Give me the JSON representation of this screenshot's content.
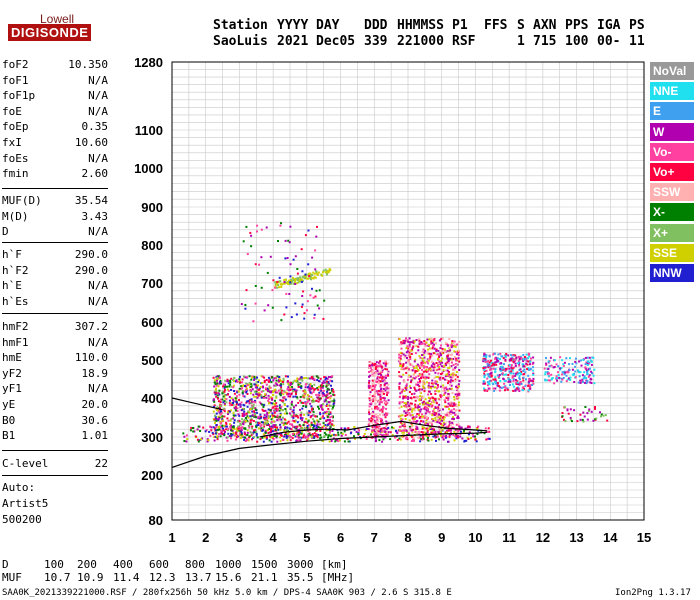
{
  "logo": {
    "line1": "Lowell",
    "line2": "DIGISONDE"
  },
  "header": {
    "labels": [
      "Station",
      "YYYY",
      "DAY",
      "DDD",
      "HHMMSS",
      "P1",
      "FFS",
      "S",
      "AXN",
      "PPS",
      "IGA",
      "PS"
    ],
    "values": [
      "SaoLuis",
      "2021",
      "Dec05",
      "339",
      "221000",
      "RSF",
      "1",
      "715",
      "100",
      "00-",
      "11"
    ]
  },
  "params": {
    "group1": [
      {
        "name": "foF2",
        "value": "10.350"
      },
      {
        "name": "foF1",
        "value": "N/A"
      },
      {
        "name": "foF1p",
        "value": "N/A"
      },
      {
        "name": "foE",
        "value": "N/A"
      },
      {
        "name": "foEp",
        "value": "0.35"
      },
      {
        "name": "fxI",
        "value": "10.60"
      },
      {
        "name": "foEs",
        "value": "N/A"
      },
      {
        "name": "fmin",
        "value": "2.60"
      }
    ],
    "group2": [
      {
        "name": "MUF(D)",
        "value": "35.54"
      },
      {
        "name": "M(D)",
        "value": "3.43"
      },
      {
        "name": "D",
        "value": "N/A"
      }
    ],
    "group3": [
      {
        "name": "h`F",
        "value": "290.0"
      },
      {
        "name": "h`F2",
        "value": "290.0"
      },
      {
        "name": "h`E",
        "value": "N/A"
      },
      {
        "name": "h`Es",
        "value": "N/A"
      }
    ],
    "group4": [
      {
        "name": "hmF2",
        "value": "307.2"
      },
      {
        "name": "hmF1",
        "value": "N/A"
      },
      {
        "name": "hmE",
        "value": "110.0"
      },
      {
        "name": "yF2",
        "value": "18.9"
      },
      {
        "name": "yF1",
        "value": "N/A"
      },
      {
        "name": "yE",
        "value": "20.0"
      },
      {
        "name": "B0",
        "value": "30.6"
      },
      {
        "name": "B1",
        "value": "1.01"
      }
    ],
    "group5": [
      {
        "name": "C-level",
        "value": "22"
      }
    ]
  },
  "autoscaling": {
    "line1": "Auto:",
    "line2": "Artist5",
    "line3": "500200"
  },
  "legend": [
    {
      "label": "NoVal",
      "bg": "#999999",
      "fg": "#ffffff"
    },
    {
      "label": "NNE",
      "bg": "#20e0f0",
      "fg": "#ffffff"
    },
    {
      "label": "E",
      "bg": "#40a0f0",
      "fg": "#ffffff"
    },
    {
      "label": "W",
      "bg": "#b000b0",
      "fg": "#ffffff"
    },
    {
      "label": "Vo-",
      "bg": "#ff40a0",
      "fg": "#ffffff"
    },
    {
      "label": "Vo+",
      "bg": "#ff0040",
      "fg": "#ffffff"
    },
    {
      "label": "SSW",
      "bg": "#ffb0b0",
      "fg": "#ffffff"
    },
    {
      "label": "X-",
      "bg": "#008000",
      "fg": "#ffffff"
    },
    {
      "label": "X+",
      "bg": "#80c060",
      "fg": "#ffffff"
    },
    {
      "label": "SSE",
      "bg": "#d0d000",
      "fg": "#ffffff"
    },
    {
      "label": "NNW",
      "bg": "#2020d0",
      "fg": "#ffffff"
    }
  ],
  "footer": {
    "d_label": "D",
    "d_values": [
      "100",
      "200",
      "400",
      "600",
      "800",
      "1000",
      "1500",
      "3000",
      "[km]"
    ],
    "muf_label": "MUF",
    "muf_values": [
      "10.7",
      "10.9",
      "11.4",
      "12.3",
      "13.7",
      "15.6",
      "21.1",
      "35.5",
      "[MHz]"
    ],
    "file_info": "SAA0K_2021339221000.RSF / 280fx256h 50 kHz 5.0 km / DPS-4 SAA0K 903 / 2.6 S 315.8 E",
    "version": "Ion2Png 1.3.17"
  },
  "chart_data": {
    "type": "scatter",
    "title": "",
    "xlabel": "",
    "ylabel": "",
    "xlim": [
      1,
      15
    ],
    "ylim": [
      80,
      1280
    ],
    "x_ticks": [
      1,
      2,
      3,
      4,
      5,
      6,
      7,
      8,
      9,
      10,
      11,
      12,
      13,
      14,
      15
    ],
    "y_ticks": [
      80,
      200,
      300,
      400,
      500,
      600,
      700,
      800,
      900,
      1000,
      1100,
      1280
    ],
    "grid": true,
    "y_scale": "nonlinear (ionogram virtual height)",
    "legend_placement": "right",
    "echo_clusters": [
      {
        "name": "F-trace low band",
        "x_range": [
          1.3,
          10.4
        ],
        "y_range": [
          290,
          330
        ],
        "colors": [
          "#2020d0",
          "#b000b0",
          "#ff0040",
          "#ff40a0",
          "#d0d000",
          "#008000"
        ]
      },
      {
        "name": "F-trace dense block",
        "x_range": [
          2.2,
          5.8
        ],
        "y_range": [
          300,
          460
        ],
        "colors": [
          "#2020d0",
          "#b000b0",
          "#ff0040",
          "#ff40a0",
          "#d0d000",
          "#80c060",
          "#008000"
        ]
      },
      {
        "name": "multi-hop block 6.8-7.4",
        "x_range": [
          6.8,
          7.4
        ],
        "y_range": [
          300,
          500
        ],
        "colors": [
          "#ff40a0",
          "#ff0040",
          "#b000b0",
          "#ffb0b0"
        ]
      },
      {
        "name": "multi-hop block 7.7-9.5",
        "x_range": [
          7.7,
          9.5
        ],
        "y_range": [
          300,
          560
        ],
        "colors": [
          "#ff40a0",
          "#ff0040",
          "#b000b0",
          "#ffb0b0",
          "#d0d000"
        ]
      },
      {
        "name": "spread 10.2-11.7",
        "x_range": [
          10.2,
          11.7
        ],
        "y_range": [
          420,
          520
        ],
        "colors": [
          "#ff40a0",
          "#ff0040",
          "#b000b0",
          "#20e0f0",
          "#40a0f0"
        ]
      },
      {
        "name": "spread 12-13.5",
        "x_range": [
          12.0,
          13.5
        ],
        "y_range": [
          440,
          510
        ],
        "colors": [
          "#20e0f0",
          "#40a0f0",
          "#ff40a0",
          "#b000b0"
        ]
      },
      {
        "name": "sparse 12.5-14",
        "x_range": [
          12.5,
          14.0
        ],
        "y_range": [
          340,
          380
        ],
        "colors": [
          "#b000b0",
          "#ff0040",
          "#008000",
          "#80c060"
        ]
      },
      {
        "name": "oblique trace",
        "x_range": [
          4.0,
          5.7
        ],
        "y_range": [
          690,
          740
        ],
        "colors": [
          "#d0d000",
          "#80c060"
        ]
      },
      {
        "name": "scattered high echoes",
        "x_range": [
          3.0,
          5.5
        ],
        "y_range": [
          600,
          860
        ],
        "colors": [
          "#ff40a0",
          "#ff0040",
          "#2020d0",
          "#b000b0",
          "#008000"
        ]
      }
    ],
    "profile_curves": [
      {
        "name": "lower profile curve",
        "points": [
          [
            1.0,
            220
          ],
          [
            2.0,
            250
          ],
          [
            3.0,
            270
          ],
          [
            4.0,
            280
          ],
          [
            5.0,
            289
          ],
          [
            6.0,
            296
          ],
          [
            7.0,
            300
          ],
          [
            8.0,
            304
          ],
          [
            9.0,
            308
          ],
          [
            10.0,
            310
          ],
          [
            10.35,
            312
          ]
        ]
      },
      {
        "name": "upper trace curve",
        "points": [
          [
            3.6,
            300
          ],
          [
            4.3,
            312
          ],
          [
            5.0,
            318
          ],
          [
            5.6,
            320
          ],
          [
            6.2,
            318
          ],
          [
            7.0,
            330
          ],
          [
            7.8,
            340
          ],
          [
            8.5,
            330
          ],
          [
            9.2,
            322
          ],
          [
            10.0,
            318
          ],
          [
            10.35,
            316
          ]
        ]
      },
      {
        "name": "left short curve",
        "points": [
          [
            1.0,
            400
          ],
          [
            1.5,
            390
          ],
          [
            2.0,
            380
          ],
          [
            2.5,
            370
          ]
        ]
      }
    ]
  }
}
